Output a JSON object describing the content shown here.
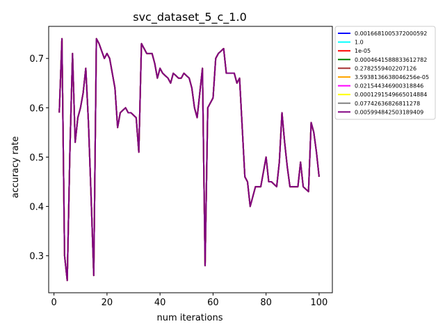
{
  "chart_data": {
    "type": "line",
    "title": "svc_dataset_5_c_1.0",
    "xlabel": "num iterations",
    "ylabel": "accuracy rate",
    "xlim": [
      -2,
      105
    ],
    "ylim": [
      0.225,
      0.765
    ],
    "xticks": [
      0,
      20,
      40,
      60,
      80,
      100
    ],
    "yticks": [
      0.3,
      0.4,
      0.5,
      0.6,
      0.7
    ],
    "grid": false,
    "legend_position": "top-right",
    "x": [
      2,
      3,
      4,
      5,
      6,
      7,
      8,
      9,
      10,
      11,
      12,
      13,
      14,
      15,
      16,
      17,
      18,
      19,
      20,
      21,
      22,
      23,
      24,
      25,
      26,
      27,
      28,
      29,
      30,
      31,
      32,
      33,
      34,
      35,
      36,
      37,
      38,
      39,
      40,
      41,
      42,
      43,
      44,
      45,
      46,
      47,
      48,
      49,
      50,
      51,
      52,
      53,
      54,
      55,
      56,
      57,
      58,
      59,
      60,
      61,
      62,
      63,
      64,
      65,
      66,
      67,
      68,
      69,
      70,
      71,
      72,
      73,
      74,
      75,
      76,
      77,
      78,
      79,
      80,
      81,
      82,
      83,
      84,
      85,
      86,
      87,
      88,
      89,
      90,
      91,
      92,
      93,
      94,
      95,
      96,
      97,
      98,
      99,
      100
    ],
    "y": [
      0.59,
      0.74,
      0.3,
      0.25,
      0.51,
      0.71,
      0.53,
      0.58,
      0.6,
      0.63,
      0.68,
      0.57,
      0.42,
      0.26,
      0.74,
      0.73,
      0.715,
      0.7,
      0.71,
      0.7,
      0.67,
      0.64,
      0.56,
      0.59,
      0.595,
      0.6,
      0.59,
      0.59,
      0.585,
      0.58,
      0.51,
      0.73,
      0.72,
      0.71,
      0.71,
      0.71,
      0.69,
      0.66,
      0.68,
      0.67,
      0.665,
      0.66,
      0.65,
      0.67,
      0.665,
      0.66,
      0.66,
      0.67,
      0.665,
      0.66,
      0.64,
      0.6,
      0.58,
      0.63,
      0.68,
      0.28,
      0.6,
      0.61,
      0.62,
      0.7,
      0.71,
      0.715,
      0.72,
      0.67,
      0.67,
      0.67,
      0.67,
      0.65,
      0.66,
      0.56,
      0.46,
      0.45,
      0.4,
      0.42,
      0.44,
      0.44,
      0.44,
      0.47,
      0.5,
      0.45,
      0.45,
      0.445,
      0.44,
      0.49,
      0.59,
      0.53,
      0.48,
      0.44,
      0.44,
      0.44,
      0.44,
      0.49,
      0.44,
      0.435,
      0.43,
      0.57,
      0.55,
      0.51,
      0.46
    ],
    "series": [
      {
        "name": "0.0016681005372000592",
        "color": "#0000ff"
      },
      {
        "name": "1.0",
        "color": "#00ffff"
      },
      {
        "name": "1e-05",
        "color": "#ff0000"
      },
      {
        "name": "0.0004641588833612782",
        "color": "#008000"
      },
      {
        "name": "0.2782559402207126",
        "color": "#a52a2a"
      },
      {
        "name": "3.5938136638046256e-05",
        "color": "#ffa500"
      },
      {
        "name": "0.021544346900318846",
        "color": "#ff00ff"
      },
      {
        "name": "0.0001291549665014884",
        "color": "#ffff00"
      },
      {
        "name": "0.07742636826811278",
        "color": "#808080"
      },
      {
        "name": "0.005994842503189409",
        "color": "#800080"
      }
    ]
  }
}
